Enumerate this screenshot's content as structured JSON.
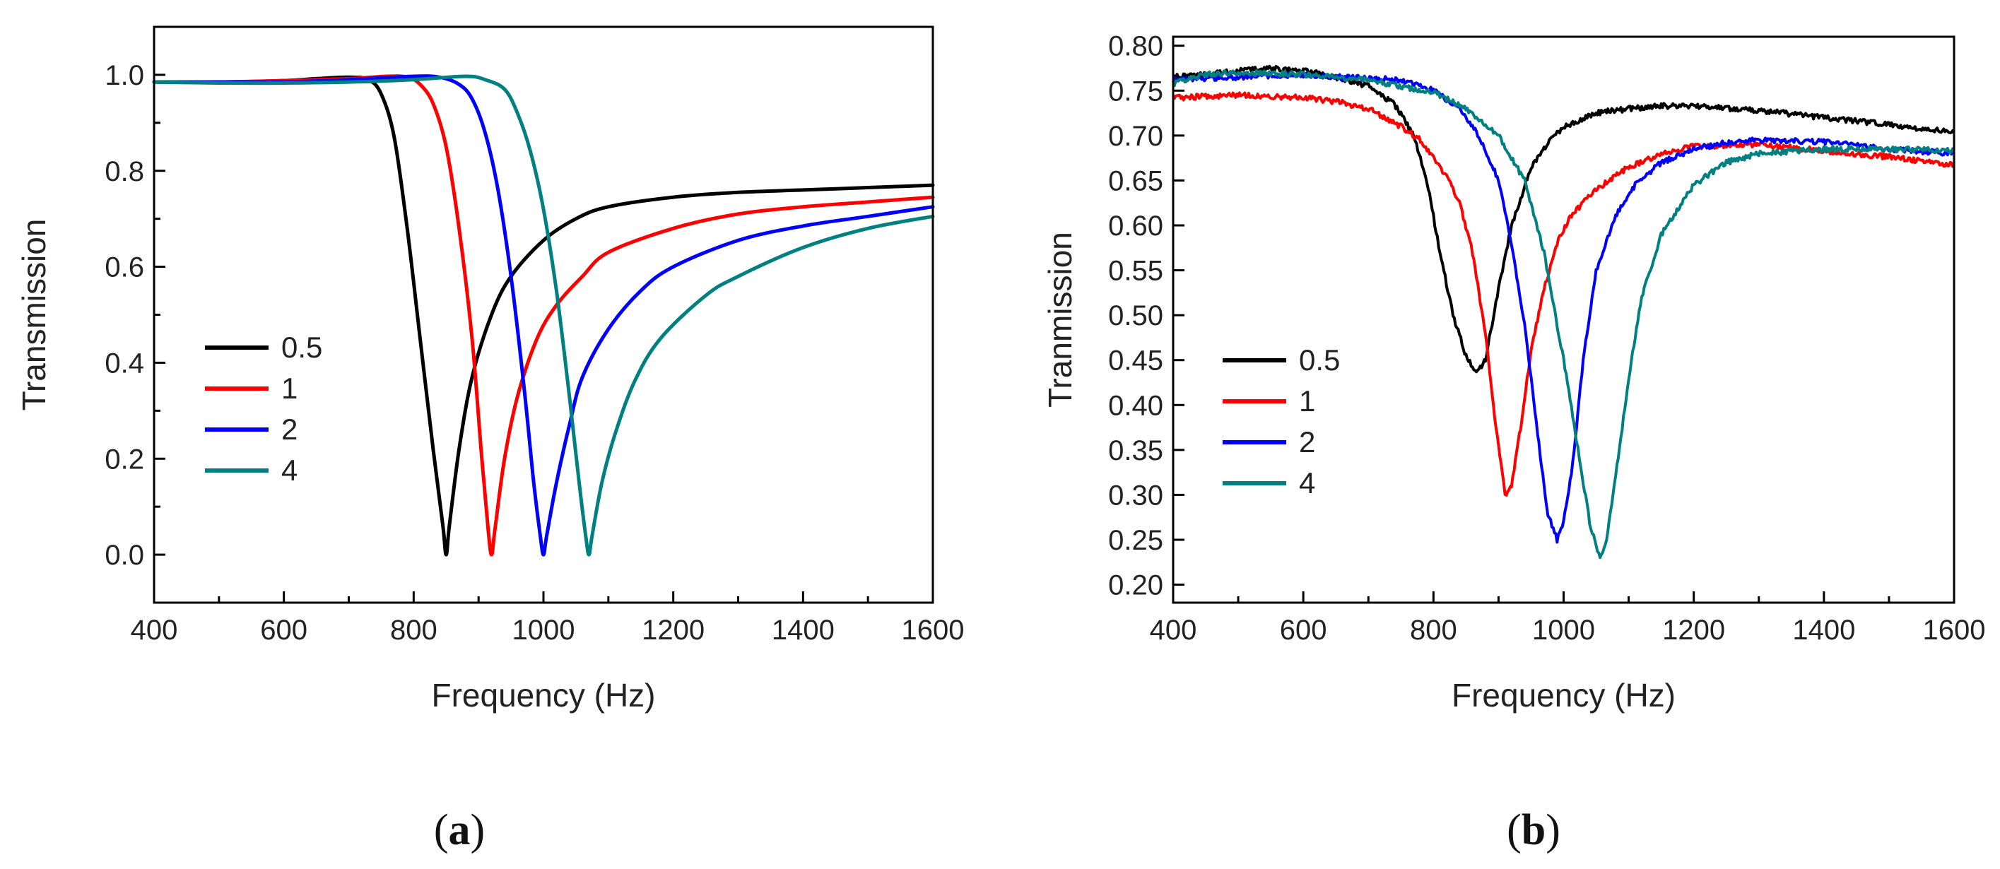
{
  "figure": {
    "panels": [
      {
        "label_open": "(",
        "label_letter": "a",
        "label_close": ")"
      },
      {
        "label_open": "(",
        "label_letter": "b",
        "label_close": ")"
      }
    ]
  },
  "chart_data": [
    {
      "type": "line",
      "panel": "a",
      "title": "",
      "xlabel": "Frequency  (Hz)",
      "ylabel": "Transmission",
      "xlim": [
        400,
        1600
      ],
      "ylim": [
        -0.1,
        1.1
      ],
      "xticks": [
        400,
        600,
        800,
        1000,
        1200,
        1400,
        1600
      ],
      "xtick_labels": [
        "400",
        "600",
        "800",
        "1000",
        "1200",
        "1400",
        "1600"
      ],
      "yticks": [
        0.0,
        0.2,
        0.4,
        0.6,
        0.8,
        1.0
      ],
      "ytick_labels": [
        "0.0",
        "0.2",
        "0.4",
        "0.6",
        "0.8",
        "1.0"
      ],
      "legend_position": "lower-left",
      "series": [
        {
          "name": "0.5",
          "color": "#000000",
          "x": [
            400,
            500,
            600,
            650,
            700,
            730,
            750,
            770,
            790,
            810,
            830,
            845,
            850,
            855,
            870,
            890,
            920,
            950,
            1000,
            1050,
            1100,
            1200,
            1300,
            1400,
            1500,
            1600
          ],
          "y": [
            0.985,
            0.985,
            0.988,
            0.992,
            0.995,
            0.99,
            0.96,
            0.87,
            0.68,
            0.45,
            0.22,
            0.06,
            0.0,
            0.06,
            0.22,
            0.37,
            0.5,
            0.58,
            0.655,
            0.7,
            0.725,
            0.745,
            0.755,
            0.76,
            0.765,
            0.77
          ]
        },
        {
          "name": "1",
          "color": "#ff0000",
          "x": [
            400,
            500,
            600,
            700,
            760,
            790,
            810,
            830,
            850,
            870,
            890,
            905,
            915,
            920,
            925,
            940,
            960,
            990,
            1020,
            1060,
            1100,
            1200,
            1300,
            1400,
            1500,
            1600
          ],
          "y": [
            0.985,
            0.985,
            0.988,
            0.992,
            0.997,
            0.995,
            0.98,
            0.94,
            0.85,
            0.68,
            0.45,
            0.2,
            0.05,
            0.0,
            0.05,
            0.2,
            0.33,
            0.45,
            0.52,
            0.58,
            0.63,
            0.68,
            0.71,
            0.725,
            0.735,
            0.745
          ]
        },
        {
          "name": "2",
          "color": "#0000ff",
          "x": [
            400,
            500,
            600,
            700,
            800,
            840,
            870,
            890,
            910,
            930,
            950,
            970,
            985,
            995,
            1000,
            1005,
            1020,
            1040,
            1060,
            1100,
            1150,
            1200,
            1300,
            1400,
            1500,
            1600
          ],
          "y": [
            0.985,
            0.985,
            0.985,
            0.99,
            0.997,
            0.995,
            0.98,
            0.95,
            0.88,
            0.76,
            0.58,
            0.35,
            0.15,
            0.04,
            0.0,
            0.04,
            0.15,
            0.27,
            0.37,
            0.47,
            0.55,
            0.6,
            0.655,
            0.685,
            0.705,
            0.725
          ]
        },
        {
          "name": "4",
          "color": "#008080",
          "x": [
            400,
            500,
            600,
            700,
            800,
            880,
            910,
            940,
            960,
            980,
            1000,
            1020,
            1040,
            1055,
            1065,
            1070,
            1075,
            1090,
            1110,
            1140,
            1180,
            1250,
            1300,
            1400,
            1500,
            1600
          ],
          "y": [
            0.985,
            0.983,
            0.983,
            0.985,
            0.99,
            0.997,
            0.99,
            0.97,
            0.92,
            0.84,
            0.72,
            0.55,
            0.33,
            0.15,
            0.04,
            0.0,
            0.04,
            0.15,
            0.25,
            0.36,
            0.45,
            0.54,
            0.58,
            0.64,
            0.68,
            0.705
          ]
        }
      ]
    },
    {
      "type": "line",
      "panel": "b",
      "title": "",
      "xlabel": "Frequency  (Hz)",
      "ylabel": "Tranmission",
      "xlim": [
        400,
        1600
      ],
      "ylim": [
        0.18,
        0.81
      ],
      "xticks": [
        400,
        600,
        800,
        1000,
        1200,
        1400,
        1600
      ],
      "xtick_labels": [
        "400",
        "600",
        "800",
        "1000",
        "1200",
        "1400",
        "1600"
      ],
      "yticks": [
        0.2,
        0.25,
        0.3,
        0.35,
        0.4,
        0.45,
        0.5,
        0.55,
        0.6,
        0.65,
        0.7,
        0.75,
        0.8
      ],
      "ytick_labels": [
        "0.20",
        "0.25",
        "0.30",
        "0.35",
        "0.40",
        "0.45",
        "0.50",
        "0.55",
        "0.60",
        "0.65",
        "0.70",
        "0.75",
        "0.80"
      ],
      "legend_position": "lower-left",
      "series": [
        {
          "name": "0.5",
          "color": "#000000",
          "x": [
            400,
            450,
            500,
            540,
            600,
            650,
            700,
            740,
            770,
            790,
            810,
            830,
            850,
            865,
            880,
            900,
            920,
            950,
            980,
            1000,
            1050,
            1100,
            1150,
            1200,
            1300,
            1400,
            1500,
            1600
          ],
          "y": [
            0.765,
            0.768,
            0.772,
            0.775,
            0.772,
            0.765,
            0.755,
            0.735,
            0.7,
            0.65,
            0.57,
            0.5,
            0.455,
            0.435,
            0.45,
            0.53,
            0.6,
            0.665,
            0.695,
            0.71,
            0.725,
            0.73,
            0.733,
            0.733,
            0.728,
            0.72,
            0.712,
            0.703
          ]
        },
        {
          "name": "1",
          "color": "#ff0000",
          "x": [
            400,
            500,
            600,
            650,
            700,
            750,
            780,
            800,
            820,
            840,
            860,
            880,
            895,
            910,
            920,
            935,
            950,
            970,
            990,
            1010,
            1050,
            1100,
            1150,
            1200,
            1300,
            1400,
            1500,
            1600
          ],
          "y": [
            0.742,
            0.745,
            0.742,
            0.738,
            0.73,
            0.71,
            0.695,
            0.675,
            0.655,
            0.625,
            0.57,
            0.48,
            0.38,
            0.3,
            0.31,
            0.38,
            0.46,
            0.53,
            0.58,
            0.61,
            0.64,
            0.665,
            0.68,
            0.688,
            0.69,
            0.683,
            0.676,
            0.667
          ]
        },
        {
          "name": "2",
          "color": "#0000ff",
          "x": [
            400,
            500,
            600,
            650,
            700,
            750,
            800,
            840,
            870,
            900,
            920,
            940,
            960,
            975,
            990,
            1000,
            1015,
            1030,
            1050,
            1080,
            1110,
            1150,
            1200,
            1250,
            1300,
            1400,
            1500,
            1600
          ],
          "y": [
            0.762,
            0.765,
            0.768,
            0.765,
            0.765,
            0.762,
            0.75,
            0.73,
            0.7,
            0.65,
            0.58,
            0.49,
            0.37,
            0.28,
            0.25,
            0.27,
            0.34,
            0.45,
            0.55,
            0.61,
            0.645,
            0.67,
            0.685,
            0.692,
            0.695,
            0.693,
            0.685,
            0.68
          ]
        },
        {
          "name": "4",
          "color": "#008080",
          "x": [
            400,
            450,
            500,
            600,
            700,
            800,
            850,
            900,
            940,
            970,
            1000,
            1020,
            1040,
            1055,
            1065,
            1080,
            1100,
            1120,
            1150,
            1200,
            1250,
            1300,
            1400,
            1500,
            1600
          ],
          "y": [
            0.758,
            0.768,
            0.77,
            0.768,
            0.762,
            0.748,
            0.73,
            0.7,
            0.65,
            0.57,
            0.45,
            0.36,
            0.27,
            0.23,
            0.245,
            0.32,
            0.43,
            0.52,
            0.59,
            0.645,
            0.67,
            0.68,
            0.685,
            0.685,
            0.683
          ]
        }
      ]
    }
  ]
}
